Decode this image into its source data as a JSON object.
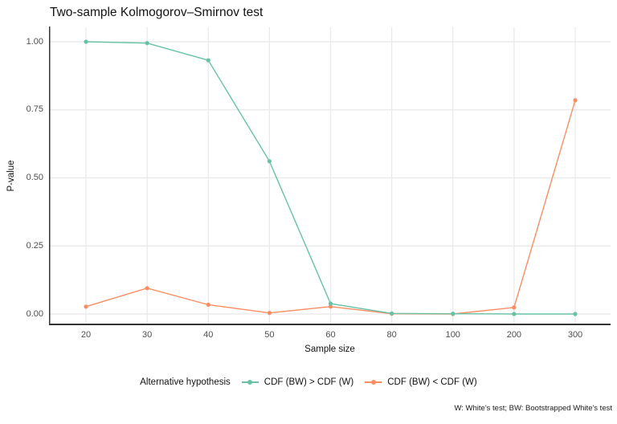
{
  "caption": "W: White's test; BW: Bootstrapped White's test",
  "chart_data": {
    "type": "line",
    "title": "Two-sample Kolmogorov–Smirnov test",
    "xlabel": "Sample size",
    "ylabel": "P-value",
    "x_scale": "discrete (equal spacing)",
    "categories": [
      "20",
      "30",
      "40",
      "50",
      "60",
      "80",
      "100",
      "200",
      "300"
    ],
    "ylim": [
      0,
      1
    ],
    "yticks": [
      "0.00",
      "0.25",
      "0.50",
      "0.75",
      "1.00"
    ],
    "ytick_values": [
      0,
      0.25,
      0.5,
      0.75,
      1.0
    ],
    "grid": true,
    "grid_color": "#e8e8e8",
    "axis_line_color": "#333333",
    "tick_label_color": "#4d4d4d",
    "legend_title": "Alternative hypothesis",
    "legend_position": "bottom",
    "series": [
      {
        "name": "CDF (BW) > CDF (W)",
        "color": "#66C2A5",
        "values": [
          1.0,
          0.995,
          0.932,
          0.561,
          0.038,
          0.002,
          0.001,
          0.0,
          0.0
        ]
      },
      {
        "name": "CDF (BW) < CDF (W)",
        "color": "#FC8D62",
        "values": [
          0.027,
          0.095,
          0.034,
          0.004,
          0.027,
          0.001,
          0.0,
          0.024,
          0.785
        ]
      }
    ]
  }
}
